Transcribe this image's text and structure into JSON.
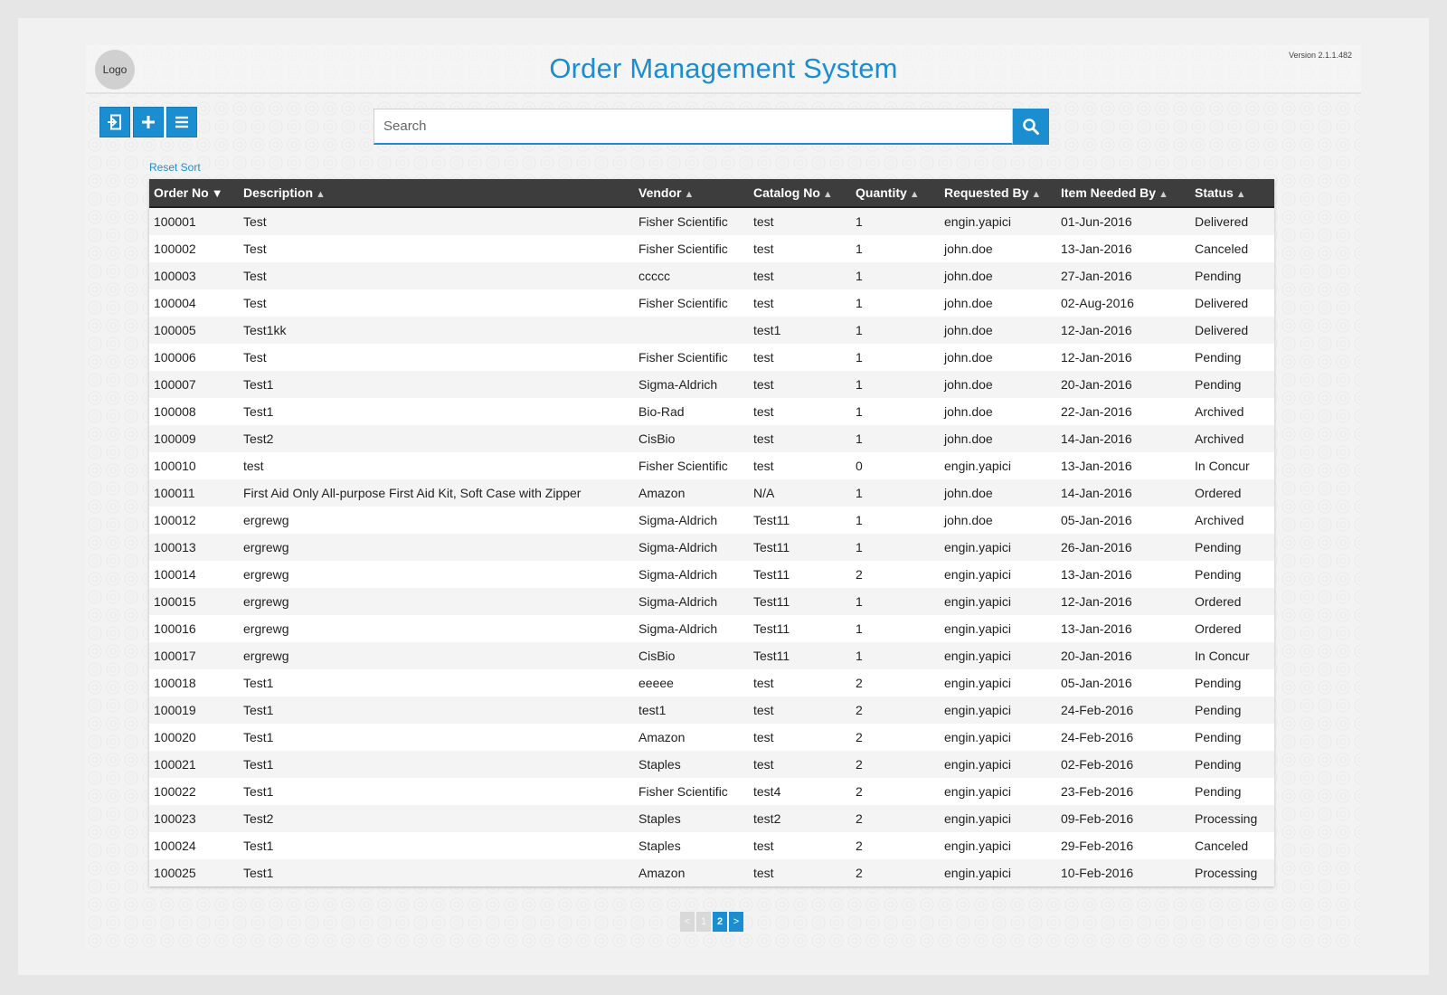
{
  "header": {
    "logo": "Logo",
    "title": "Order Management System",
    "version": "Version 2.1.1.482"
  },
  "toolbar": {
    "buttons": [
      {
        "name": "logout-button",
        "icon": "logout-icon"
      },
      {
        "name": "add-button",
        "icon": "plus-icon"
      },
      {
        "name": "menu-button",
        "icon": "menu-icon"
      }
    ]
  },
  "search": {
    "placeholder": "Search",
    "value": ""
  },
  "reset_sort": "Reset Sort",
  "table": {
    "columns": [
      "Order No",
      "Description",
      "Vendor",
      "Catalog No",
      "Quantity",
      "Requested By",
      "Item Needed By",
      "Status"
    ],
    "sort_column": "Order No",
    "sort_direction": "desc",
    "rows": [
      [
        "100001",
        "Test",
        "Fisher Scientific",
        "test",
        "1",
        "engin.yapici",
        "01-Jun-2016",
        "Delivered"
      ],
      [
        "100002",
        "Test",
        "Fisher Scientific",
        "test",
        "1",
        "john.doe",
        "13-Jan-2016",
        "Canceled"
      ],
      [
        "100003",
        "Test",
        "ccccc",
        "test",
        "1",
        "john.doe",
        "27-Jan-2016",
        "Pending"
      ],
      [
        "100004",
        "Test",
        "Fisher Scientific",
        "test",
        "1",
        "john.doe",
        "02-Aug-2016",
        "Delivered"
      ],
      [
        "100005",
        "Test1kk",
        "",
        "test1",
        "1",
        "john.doe",
        "12-Jan-2016",
        "Delivered"
      ],
      [
        "100006",
        "Test",
        "Fisher Scientific",
        "test",
        "1",
        "john.doe",
        "12-Jan-2016",
        "Pending"
      ],
      [
        "100007",
        "Test1",
        "Sigma-Aldrich",
        "test",
        "1",
        "john.doe",
        "20-Jan-2016",
        "Pending"
      ],
      [
        "100008",
        "Test1",
        "Bio-Rad",
        "test",
        "1",
        "john.doe",
        "22-Jan-2016",
        "Archived"
      ],
      [
        "100009",
        "Test2",
        "CisBio",
        "test",
        "1",
        "john.doe",
        "14-Jan-2016",
        "Archived"
      ],
      [
        "100010",
        "test",
        "Fisher Scientific",
        "test",
        "0",
        "engin.yapici",
        "13-Jan-2016",
        "In Concur"
      ],
      [
        "100011",
        "First Aid Only All-purpose First Aid Kit, Soft Case with Zipper",
        "Amazon",
        "N/A",
        "1",
        "john.doe",
        "14-Jan-2016",
        "Ordered"
      ],
      [
        "100012",
        "ergrewg",
        "Sigma-Aldrich",
        "Test11",
        "1",
        "john.doe",
        "05-Jan-2016",
        "Archived"
      ],
      [
        "100013",
        "ergrewg",
        "Sigma-Aldrich",
        "Test11",
        "1",
        "engin.yapici",
        "26-Jan-2016",
        "Pending"
      ],
      [
        "100014",
        "ergrewg",
        "Sigma-Aldrich",
        "Test11",
        "2",
        "engin.yapici",
        "13-Jan-2016",
        "Pending"
      ],
      [
        "100015",
        "ergrewg",
        "Sigma-Aldrich",
        "Test11",
        "1",
        "engin.yapici",
        "12-Jan-2016",
        "Ordered"
      ],
      [
        "100016",
        "ergrewg",
        "Sigma-Aldrich",
        "Test11",
        "1",
        "engin.yapici",
        "13-Jan-2016",
        "Ordered"
      ],
      [
        "100017",
        "ergrewg",
        "CisBio",
        "Test11",
        "1",
        "engin.yapici",
        "20-Jan-2016",
        "In Concur"
      ],
      [
        "100018",
        "Test1",
        "eeeee",
        "test",
        "2",
        "engin.yapici",
        "05-Jan-2016",
        "Pending"
      ],
      [
        "100019",
        "Test1",
        "test1",
        "test",
        "2",
        "engin.yapici",
        "24-Feb-2016",
        "Pending"
      ],
      [
        "100020",
        "Test1",
        "Amazon",
        "test",
        "2",
        "engin.yapici",
        "24-Feb-2016",
        "Pending"
      ],
      [
        "100021",
        "Test1",
        "Staples",
        "test",
        "2",
        "engin.yapici",
        "02-Feb-2016",
        "Pending"
      ],
      [
        "100022",
        "Test1",
        "Fisher Scientific",
        "test4",
        "2",
        "engin.yapici",
        "23-Feb-2016",
        "Pending"
      ],
      [
        "100023",
        "Test2",
        "Staples",
        "test2",
        "2",
        "engin.yapici",
        "09-Feb-2016",
        "Processing"
      ],
      [
        "100024",
        "Test1",
        "Staples",
        "test",
        "2",
        "engin.yapici",
        "29-Feb-2016",
        "Canceled"
      ],
      [
        "100025",
        "Test1",
        "Amazon",
        "test",
        "2",
        "engin.yapici",
        "10-Feb-2016",
        "Processing"
      ]
    ]
  },
  "pagination": {
    "prev": "<",
    "pages": [
      "1",
      "2"
    ],
    "current": "2",
    "next": ">"
  },
  "colors": {
    "accent": "#1b8ed2",
    "header_bg": "#3d3d3d"
  }
}
